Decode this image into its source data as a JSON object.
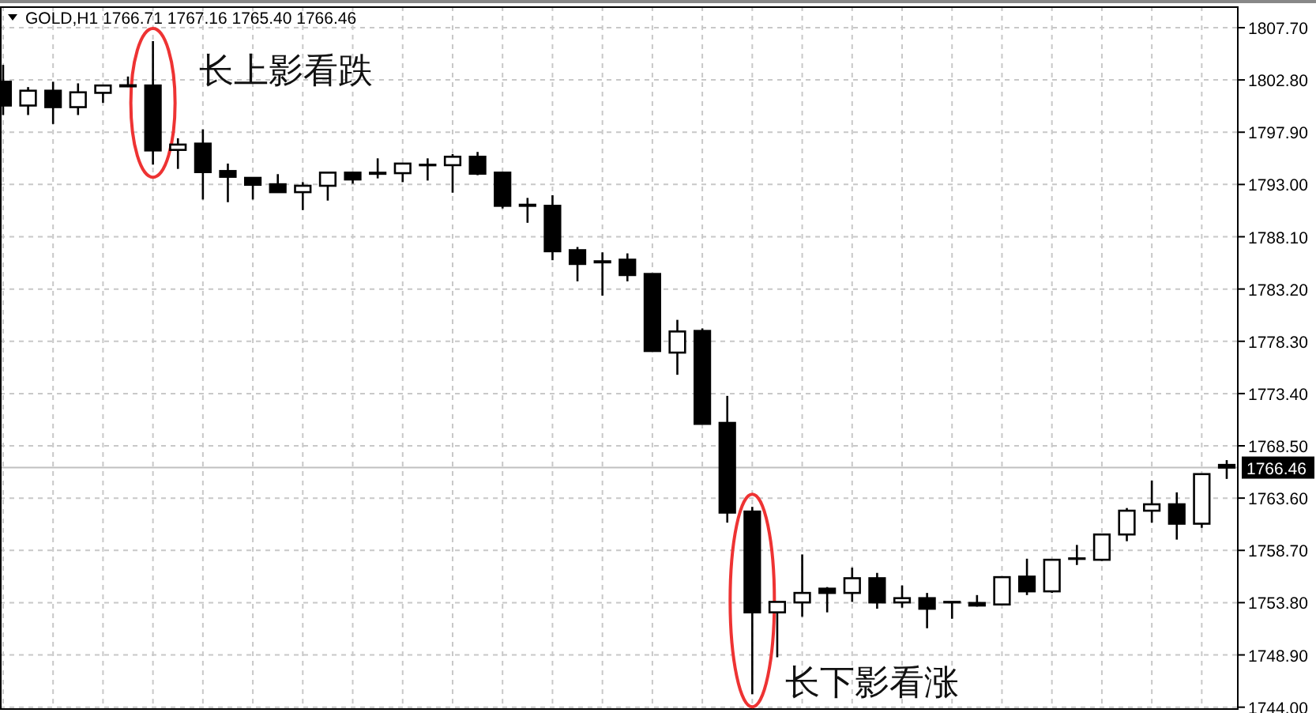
{
  "chart_data": {
    "type": "candlestick",
    "title": "GOLD,H1  1766.71 1767.16 1765.40 1766.46",
    "categories": [
      null,
      null,
      null,
      null,
      null,
      null,
      null,
      null,
      null,
      null,
      null,
      null,
      null,
      null,
      null,
      null,
      null,
      null,
      null,
      null,
      null,
      null,
      null,
      null,
      null,
      null,
      null,
      null,
      null,
      null,
      null,
      null,
      null,
      null,
      null,
      null,
      null,
      null,
      null,
      null,
      null,
      null,
      null,
      null,
      null,
      null,
      null,
      null,
      null,
      null
    ],
    "ohlc": [
      [
        1802.63,
        1804.21,
        1799.51,
        1800.4
      ],
      [
        1800.4,
        1802.13,
        1799.51,
        1801.79
      ],
      [
        1801.79,
        1802.63,
        1798.67,
        1800.25
      ],
      [
        1800.25,
        1802.48,
        1799.51,
        1801.64
      ],
      [
        1801.59,
        1802.28,
        1800.65,
        1802.28
      ],
      [
        1802.2,
        1803.12,
        1802.13,
        1802.3
      ],
      [
        1802.28,
        1806.44,
        1794.86,
        1796.19
      ],
      [
        1796.24,
        1797.33,
        1794.46,
        1796.74
      ],
      [
        1796.83,
        1798.17,
        1791.59,
        1794.16
      ],
      [
        1794.26,
        1794.96,
        1791.34,
        1793.72
      ],
      [
        1793.62,
        1793.62,
        1791.59,
        1792.97
      ],
      [
        1793.02,
        1793.97,
        1792.28,
        1792.28
      ],
      [
        1792.28,
        1793.22,
        1790.6,
        1792.88
      ],
      [
        1792.88,
        1794.11,
        1791.49,
        1794.11
      ],
      [
        1794.11,
        1794.11,
        1793.07,
        1793.47
      ],
      [
        1794.1,
        1795.45,
        1793.57,
        1794.0
      ],
      [
        1794.06,
        1794.96,
        1793.22,
        1794.96
      ],
      [
        1794.8,
        1795.45,
        1793.37,
        1794.85
      ],
      [
        1794.81,
        1795.85,
        1792.23,
        1795.6
      ],
      [
        1795.6,
        1796.05,
        1793.87,
        1794.01
      ],
      [
        1794.11,
        1794.11,
        1790.75,
        1791.0
      ],
      [
        1791.1,
        1791.74,
        1789.41,
        1791.0
      ],
      [
        1791.0,
        1791.99,
        1785.9,
        1786.74
      ],
      [
        1786.84,
        1787.14,
        1783.92,
        1785.55
      ],
      [
        1785.8,
        1786.64,
        1782.58,
        1785.7
      ],
      [
        1785.95,
        1786.54,
        1783.92,
        1784.51
      ],
      [
        1784.61,
        1784.61,
        1777.39,
        1777.39
      ],
      [
        1777.24,
        1780.31,
        1775.16,
        1779.22
      ],
      [
        1779.27,
        1779.51,
        1770.56,
        1770.56
      ],
      [
        1770.65,
        1773.18,
        1761.3,
        1762.24
      ],
      [
        1762.34,
        1762.78,
        1745.21,
        1752.89
      ],
      [
        1752.89,
        1753.87,
        1748.68,
        1753.87
      ],
      [
        1753.82,
        1758.32,
        1752.48,
        1754.71
      ],
      [
        1755.11,
        1755.26,
        1752.89,
        1754.71
      ],
      [
        1754.71,
        1757.08,
        1753.87,
        1756.09
      ],
      [
        1756.09,
        1756.59,
        1753.23,
        1753.82
      ],
      [
        1753.82,
        1755.41,
        1753.33,
        1754.22
      ],
      [
        1754.22,
        1754.71,
        1751.4,
        1753.23
      ],
      [
        1753.87,
        1753.9,
        1752.29,
        1753.82
      ],
      [
        1753.77,
        1754.51,
        1753.43,
        1753.53
      ],
      [
        1753.63,
        1756.19,
        1753.63,
        1756.19
      ],
      [
        1756.24,
        1757.92,
        1754.51,
        1754.86
      ],
      [
        1754.86,
        1757.82,
        1754.71,
        1757.82
      ],
      [
        1757.9,
        1759.21,
        1757.33,
        1757.95
      ],
      [
        1757.82,
        1760.19,
        1757.72,
        1760.19
      ],
      [
        1760.19,
        1762.67,
        1759.56,
        1762.42
      ],
      [
        1762.42,
        1765.25,
        1761.3,
        1763.02
      ],
      [
        1763.02,
        1764.14,
        1759.71,
        1761.2
      ],
      [
        1761.2,
        1765.85,
        1760.81,
        1765.85
      ],
      [
        1766.71,
        1767.16,
        1765.4,
        1766.46
      ]
    ],
    "ylim": [
      1743.9,
      1809.7
    ],
    "yticks": [
      {
        "value": 1807.7,
        "label": "1807.70"
      },
      {
        "value": 1802.8,
        "label": "1802.80"
      },
      {
        "value": 1797.9,
        "label": "1797.90"
      },
      {
        "value": 1793.0,
        "label": "1793.00"
      },
      {
        "value": 1788.1,
        "label": "1788.10"
      },
      {
        "value": 1783.2,
        "label": "1783.20"
      },
      {
        "value": 1778.3,
        "label": "1778.30"
      },
      {
        "value": 1773.4,
        "label": "1773.40"
      },
      {
        "value": 1768.5,
        "label": "1768.50"
      },
      {
        "value": 1763.6,
        "label": "1763.60"
      },
      {
        "value": 1758.7,
        "label": "1758.70"
      },
      {
        "value": 1753.8,
        "label": "1753.80"
      },
      {
        "value": 1748.9,
        "label": "1748.90"
      },
      {
        "value": 1744.0,
        "label": "1744.00"
      }
    ],
    "tick_labels": "y",
    "grid": true,
    "ref_lines": [
      {
        "axis": "y",
        "value": 1766.46,
        "label": "1766.46",
        "color": "#c0c0c0"
      }
    ],
    "annotations": [
      "长上影看跌",
      "长下影看涨"
    ]
  }
}
